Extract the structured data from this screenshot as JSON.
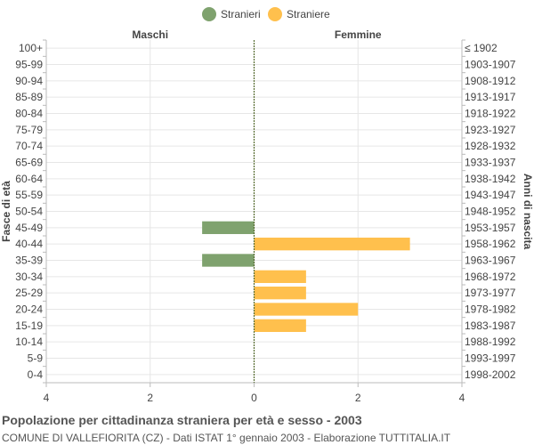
{
  "chart_data": {
    "type": "bar",
    "orientation": "horizontal",
    "title": "Popolazione per cittadinanza straniera per età e sesso - 2003",
    "subtitle": "COMUNE DI VALLEFIORITA (CZ) - Dati ISTAT 1° gennaio 2003 - Elaborazione TUTTITALIA.IT",
    "left_header": "Maschi",
    "right_header": "Femmine",
    "ylabel_left": "Fasce di età",
    "ylabel_right": "Anni di nascita",
    "age_groups": [
      "100+",
      "95-99",
      "90-94",
      "85-89",
      "80-84",
      "75-79",
      "70-74",
      "65-69",
      "60-64",
      "55-59",
      "50-54",
      "45-49",
      "40-44",
      "35-39",
      "30-34",
      "25-29",
      "20-24",
      "15-19",
      "10-14",
      "5-9",
      "0-4"
    ],
    "birth_years": [
      "≤ 1902",
      "1903-1907",
      "1908-1912",
      "1913-1917",
      "1918-1922",
      "1923-1927",
      "1928-1932",
      "1933-1937",
      "1938-1942",
      "1943-1947",
      "1948-1952",
      "1953-1957",
      "1958-1962",
      "1963-1967",
      "1968-1972",
      "1973-1977",
      "1978-1982",
      "1983-1987",
      "1988-1992",
      "1993-1997",
      "1998-2002"
    ],
    "series": [
      {
        "name": "Stranieri",
        "color": "#7fa26e",
        "values": [
          0,
          0,
          0,
          0,
          0,
          0,
          0,
          0,
          0,
          0,
          0,
          1,
          0,
          1,
          0,
          0,
          0,
          0,
          0,
          0,
          0
        ]
      },
      {
        "name": "Straniere",
        "color": "#ffc04d",
        "values": [
          0,
          0,
          0,
          0,
          0,
          0,
          0,
          0,
          0,
          0,
          0,
          0,
          3,
          0,
          1,
          1,
          2,
          1,
          0,
          0,
          0
        ]
      }
    ],
    "x_ticks": [
      {
        "value": -4,
        "label": "4"
      },
      {
        "value": -2,
        "label": "2"
      },
      {
        "value": 0,
        "label": "0"
      },
      {
        "value": 2,
        "label": "2"
      },
      {
        "value": 4,
        "label": "4"
      }
    ],
    "xlim": [
      -4,
      4
    ],
    "grid": true,
    "legend_position": "top-center"
  }
}
